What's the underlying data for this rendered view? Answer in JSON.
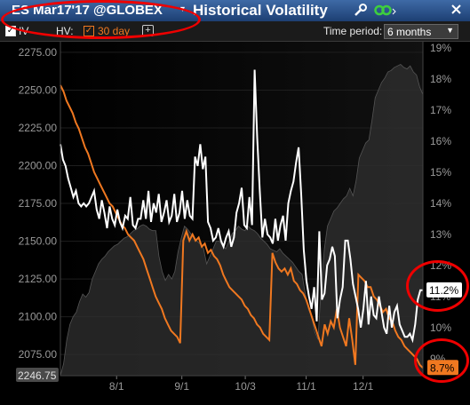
{
  "window": {
    "symbol": "ES Mar17'17 @GLOBEX",
    "title": "Historical Volatility",
    "dropdown_arrow": "▾",
    "icons": [
      "wrench-icon",
      "link-icon",
      "close-icon"
    ],
    "title_color": "#ffffff",
    "bar_color": "#2a5088"
  },
  "toolbar": {
    "iv_label": "IV",
    "hv_label": "HV:",
    "hv_period": "30 day",
    "add_label": "+",
    "time_period_label": "Time period:",
    "time_period_value": "6 months",
    "check_mark": "✓"
  },
  "chart_data": {
    "type": "line",
    "x_tick_labels": [
      "8/1",
      "9/1",
      "10/3",
      "11/1",
      "12/1"
    ],
    "y_left": {
      "ticks": [
        2075,
        2100,
        2125,
        2150,
        2175,
        2200,
        2225,
        2250,
        2275
      ],
      "range": [
        2061,
        2282
      ]
    },
    "y_right": {
      "ticks": [
        9,
        10,
        11,
        12,
        13,
        14,
        15,
        16,
        17,
        18,
        19
      ],
      "unit": "%",
      "range": [
        8.45,
        19.2
      ]
    },
    "last_price_label": "2246.75",
    "iv_last_label": "11.2%",
    "hv_last_label": "8.7%",
    "colors": {
      "iv": "#ffffff",
      "hv": "#f07820",
      "price_area": "#303030",
      "hv_badge": "#f07820",
      "annotation": "#e00000"
    },
    "series": [
      {
        "name": "IV",
        "values": [
          15.9,
          15.4,
          15.2,
          14.8,
          14.5,
          14.2,
          14.4,
          14.0,
          13.9,
          14.0,
          13.9,
          14.0,
          14.2,
          14.4,
          13.8,
          13.5,
          14.1,
          13.7,
          13.2,
          13.9,
          13.5,
          13.3,
          13.8,
          13.4,
          13.2,
          13.6,
          13.5,
          14.2,
          13.3,
          13.2,
          13.5,
          13.5,
          14.1,
          13.5,
          14.4,
          13.4,
          14.0,
          13.7,
          14.3,
          13.4,
          13.7,
          14.1,
          13.4,
          13.6,
          14.3,
          13.4,
          13.7,
          14.4,
          13.5,
          14.1,
          13.6,
          13.5,
          15.5,
          15.2,
          15.9,
          15.1,
          15.5,
          13.4,
          13.2,
          12.8,
          12.9,
          13.2,
          12.8,
          12.6,
          12.9,
          13.1,
          12.6,
          12.9,
          13.7,
          14.0,
          14.5,
          13.3,
          13.2,
          14.2,
          13.3,
          18.3,
          16.1,
          14.4,
          12.9,
          13.5,
          13.0,
          12.9,
          12.7,
          13.5,
          12.8,
          13.3,
          13.6,
          12.8,
          14.0,
          14.4,
          14.7,
          15.3,
          15.8,
          14.3,
          12.5,
          11.5,
          11.0,
          10.6,
          11.3,
          10.2,
          13.1,
          10.9,
          11.1,
          12.0,
          12.2,
          12.6,
          12.3,
          10.3,
          10.9,
          11.3,
          12.8,
          12.8,
          12.2,
          11.4,
          11.0,
          10.6,
          10.0,
          10.6,
          11.5,
          10.1,
          11.0,
          10.4,
          10.3,
          11.0,
          10.5,
          10.0,
          9.8,
          10.7,
          10.0,
          10.5,
          10.7,
          10.1,
          9.9,
          9.7,
          9.7,
          9.8,
          9.6,
          10.1,
          10.9,
          11.2,
          11.2
        ]
      },
      {
        "name": "30 day",
        "values": [
          17.8,
          17.6,
          17.3,
          17.1,
          16.9,
          16.6,
          16.4,
          16.1,
          15.8,
          15.6,
          15.3,
          15.0,
          14.8,
          14.6,
          14.4,
          14.2,
          14.0,
          13.9,
          13.7,
          13.5,
          13.3,
          13.2,
          13.0,
          12.9,
          12.8,
          12.6,
          12.4,
          12.2,
          11.9,
          11.6,
          11.3,
          11.0,
          10.8,
          10.6,
          10.3,
          10.1,
          9.9,
          9.8,
          9.7,
          9.5,
          12.8,
          13.1,
          12.8,
          13.0,
          12.8,
          12.9,
          12.6,
          12.7,
          12.4,
          12.5,
          12.3,
          12.2,
          12.0,
          11.7,
          11.5,
          11.3,
          11.2,
          11.1,
          11.0,
          10.9,
          10.7,
          10.6,
          10.4,
          10.3,
          10.1,
          10.0,
          9.8,
          9.7,
          9.6,
          12.4,
          12.1,
          11.9,
          11.8,
          11.9,
          11.7,
          11.9,
          11.5,
          11.4,
          11.2,
          11.1,
          10.9,
          10.6,
          10.3,
          10.0,
          9.7,
          9.4,
          10.1,
          9.8,
          10.2,
          10.0,
          10.6,
          10.0,
          9.7,
          9.4,
          10.3,
          9.6,
          8.8,
          11.7,
          11.6,
          11.5,
          11.3,
          11.3,
          11.0,
          10.9,
          10.7,
          10.5,
          10.6,
          10.3,
          10.2,
          9.9,
          9.7,
          9.6,
          9.4,
          9.3,
          9.2,
          9.1,
          9.0,
          8.8,
          8.7
        ]
      },
      {
        "name": "Price",
        "values": [
          2061,
          2069,
          2085,
          2095,
          2100,
          2103,
          2110,
          2115,
          2113,
          2116,
          2125,
          2130,
          2135,
          2138,
          2140,
          2143,
          2145,
          2147,
          2148,
          2150,
          2152,
          2153,
          2155,
          2157,
          2158,
          2160,
          2161,
          2160,
          2158,
          2157,
          2157,
          2140,
          2130,
          2124,
          2128,
          2125,
          2130,
          2143,
          2152,
          2160,
          2158,
          2155,
          2153,
          2150,
          2148,
          2145,
          2135,
          2140,
          2145,
          2150,
          2150,
          2147,
          2145,
          2150,
          2155,
          2157,
          2160,
          2158,
          2157,
          2160,
          2158,
          2157,
          2155,
          2152,
          2150,
          2148,
          2145,
          2144,
          2143,
          2145,
          2142,
          2140,
          2138,
          2136,
          2133,
          2130,
          2128,
          2115,
          2105,
          2100,
          2090,
          2085,
          2120,
          2145,
          2160,
          2165,
          2170,
          2172,
          2175,
          2178,
          2180,
          2185,
          2180,
          2190,
          2205,
          2210,
          2215,
          2217,
          2230,
          2245,
          2250,
          2255,
          2258,
          2262,
          2263,
          2265,
          2266,
          2267,
          2265,
          2264,
          2266,
          2262,
          2260,
          2252,
          2247
        ]
      }
    ]
  }
}
